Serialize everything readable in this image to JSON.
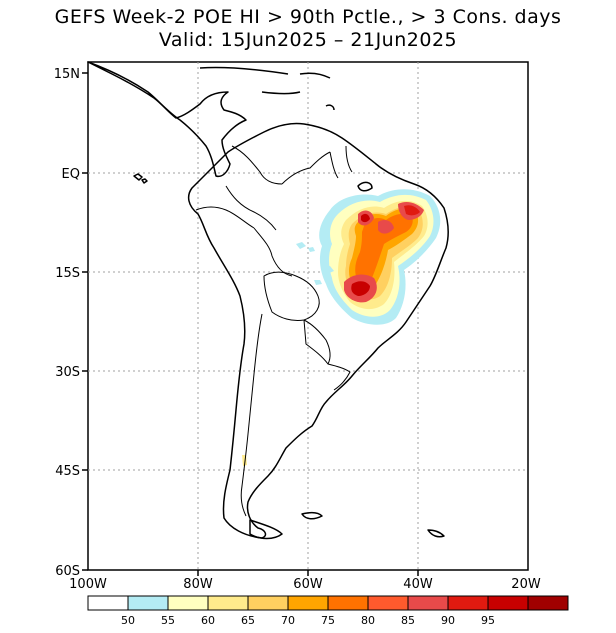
{
  "title": {
    "line1": "GEFS Week-2 POE HI > 90th Pctle., > 3 Cons. days",
    "line2": "Valid: 15Jun2025 – 21Jun2025"
  },
  "map": {
    "lon_range": [
      -100,
      -20
    ],
    "lat_range": [
      -60,
      15
    ],
    "lat_labels": [
      "15N",
      "EQ",
      "15S",
      "30S",
      "45S",
      "60S"
    ],
    "lon_labels": [
      "100W",
      "80W",
      "60W",
      "40W",
      "20W"
    ]
  },
  "colorbar": {
    "colors": [
      "#ffffff",
      "#b4ecf4",
      "#ffffc0",
      "#ffeb8c",
      "#ffd060",
      "#ffa500",
      "#ff7200",
      "#ff5a2d",
      "#e84a4a",
      "#e01a10",
      "#c80000",
      "#a00000"
    ],
    "labels": [
      "50",
      "55",
      "60",
      "65",
      "70",
      "75",
      "80",
      "85",
      "90",
      "95"
    ]
  }
}
